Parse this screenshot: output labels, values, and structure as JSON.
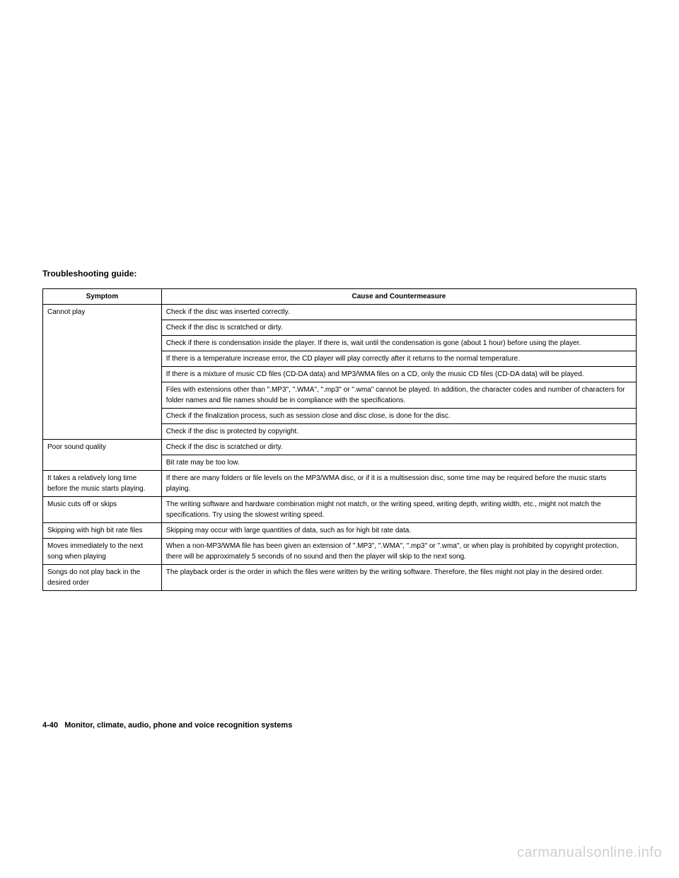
{
  "title": "Troubleshooting guide:",
  "table": {
    "headers": {
      "symptom": "Symptom",
      "cause": "Cause and Countermeasure"
    },
    "rows": [
      {
        "symptom": "Cannot play",
        "causes": [
          "Check if the disc was inserted correctly.",
          "Check if the disc is scratched or dirty.",
          "Check if there is condensation inside the player. If there is, wait until the condensation is gone (about 1 hour) before using the player.",
          "If there is a temperature increase error, the CD player will play correctly after it returns to the normal temperature.",
          "If there is a mixture of music CD files (CD-DA data) and MP3/WMA files on a CD, only the music CD files (CD-DA data) will be played.",
          "Files with extensions other than \".MP3\", \".WMA\", \".mp3\" or \".wma\" cannot be played. In addition, the character codes and number of characters for folder names and file names should be in compliance with the specifications.",
          "Check if the finalization process, such as session close and disc close, is done for the disc.",
          "Check if the disc is protected by copyright."
        ]
      },
      {
        "symptom": "Poor sound quality",
        "causes": [
          "Check if the disc is scratched or dirty.",
          "Bit rate may be too low."
        ]
      },
      {
        "symptom": "It takes a relatively long time before the music starts playing.",
        "causes": [
          "If there are many folders or file levels on the MP3/WMA disc, or if it is a multisession disc, some time may be required before the music starts playing."
        ]
      },
      {
        "symptom": "Music cuts off or skips",
        "causes": [
          "The writing software and hardware combination might not match, or the writing speed, writing depth, writing width, etc., might not match the specifications. Try using the slowest writing speed."
        ]
      },
      {
        "symptom": "Skipping with high bit rate files",
        "causes": [
          "Skipping may occur with large quantities of data, such as for high bit rate data."
        ]
      },
      {
        "symptom": "Moves immediately to the next song when playing",
        "causes": [
          "When a non-MP3/WMA file has been given an extension of \".MP3\", \".WMA\", \".mp3\" or \".wma\", or when play is prohibited by copyright protection, there will be approximately 5 seconds of no sound and then the player will skip to the next song."
        ]
      },
      {
        "symptom": "Songs do not play back in the desired order",
        "causes": [
          "The playback order is the order in which the files were written by the writing software. Therefore, the files might not play in the desired order."
        ]
      }
    ]
  },
  "footer": {
    "page": "4-40",
    "section": "Monitor, climate, audio, phone and voice recognition systems"
  },
  "watermark": "carmanualsonline.info",
  "colors": {
    "border": "#000000",
    "text": "#000000",
    "bg": "#ffffff",
    "watermark": "#cfcfcf"
  }
}
